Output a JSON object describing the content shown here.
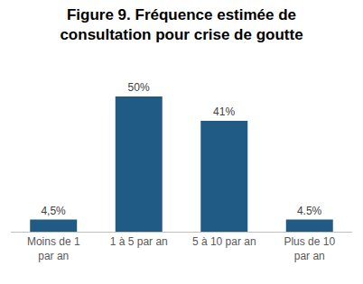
{
  "chart_data": {
    "type": "bar",
    "title": "Figure 9. Fréquence estimée de consultation pour crise de goutte",
    "categories": [
      "Moins de 1 par an",
      "1 à 5 par an",
      "5 à 10 par an",
      "Plus de 10 par an"
    ],
    "values": [
      4.5,
      50,
      41,
      4.5
    ],
    "value_labels": [
      "4,5%",
      "50%",
      "41%",
      "4.5%"
    ],
    "data_labels": true,
    "color": "#1f5b84",
    "ylim": [
      0,
      55
    ],
    "grid": false,
    "tick_labels": "x"
  }
}
